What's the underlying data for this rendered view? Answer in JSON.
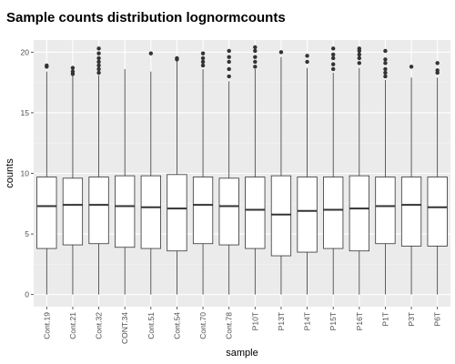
{
  "chart_data": {
    "type": "box",
    "title": "Sample counts distribution lognormcounts",
    "xlabel": "sample",
    "ylabel": "counts",
    "ylim": [
      -1,
      21
    ],
    "yticks": [
      0,
      5,
      10,
      15,
      20
    ],
    "grid": true,
    "categories": [
      "Cont.19",
      "Cont.21",
      "Cont.32",
      "CONT.34",
      "Cont.51",
      "Cont.54",
      "Cont.70",
      "Cont.78",
      "P10T",
      "P13T",
      "P14T",
      "P15T",
      "P16T",
      "P1T",
      "P3T",
      "P6T"
    ],
    "boxes": [
      {
        "min": 0,
        "q1": 3.8,
        "median": 7.3,
        "q3": 9.7,
        "max": 18.4,
        "outliers": [
          18.8,
          18.9
        ]
      },
      {
        "min": 0,
        "q1": 4.1,
        "median": 7.4,
        "q3": 9.6,
        "max": 18.1,
        "outliers": [
          18.2,
          18.4,
          18.7
        ]
      },
      {
        "min": 0,
        "q1": 4.2,
        "median": 7.4,
        "q3": 9.7,
        "max": 18.1,
        "outliers": [
          18.3,
          18.6,
          18.9,
          19.2,
          19.5,
          19.9,
          20.3
        ]
      },
      {
        "min": 0,
        "q1": 3.9,
        "median": 7.3,
        "q3": 9.8,
        "max": 18.6,
        "outliers": []
      },
      {
        "min": 0,
        "q1": 3.8,
        "median": 7.2,
        "q3": 9.8,
        "max": 18.4,
        "outliers": [
          19.9
        ]
      },
      {
        "min": 0,
        "q1": 3.6,
        "median": 7.1,
        "q3": 9.9,
        "max": 19.3,
        "outliers": [
          19.4,
          19.5
        ]
      },
      {
        "min": 0,
        "q1": 4.2,
        "median": 7.4,
        "q3": 9.7,
        "max": 18.6,
        "outliers": [
          18.9,
          19.2,
          19.5,
          19.9
        ]
      },
      {
        "min": 0,
        "q1": 4.1,
        "median": 7.3,
        "q3": 9.6,
        "max": 17.6,
        "outliers": [
          18.0,
          18.6,
          19.2,
          19.6,
          20.1
        ]
      },
      {
        "min": 0,
        "q1": 3.8,
        "median": 7.0,
        "q3": 9.7,
        "max": 18.6,
        "outliers": [
          18.8,
          19.2,
          19.6,
          20.1,
          20.4
        ]
      },
      {
        "min": 0,
        "q1": 3.2,
        "median": 6.6,
        "q3": 9.8,
        "max": 19.6,
        "outliers": [
          20.0
        ]
      },
      {
        "min": 0,
        "q1": 3.5,
        "median": 6.9,
        "q3": 9.7,
        "max": 18.7,
        "outliers": [
          19.2,
          19.7
        ]
      },
      {
        "min": 0,
        "q1": 3.8,
        "median": 7.0,
        "q3": 9.7,
        "max": 18.3,
        "outliers": [
          18.6,
          19.0,
          19.5,
          19.8,
          20.3
        ]
      },
      {
        "min": 0,
        "q1": 3.6,
        "median": 7.1,
        "q3": 9.8,
        "max": 18.7,
        "outliers": [
          19.1,
          19.5,
          19.8,
          20.1,
          20.3
        ]
      },
      {
        "min": 0,
        "q1": 4.2,
        "median": 7.3,
        "q3": 9.7,
        "max": 17.7,
        "outliers": [
          18.0,
          18.3,
          18.6,
          19.1,
          19.4,
          20.1
        ]
      },
      {
        "min": 0,
        "q1": 4.0,
        "median": 7.4,
        "q3": 9.7,
        "max": 17.9,
        "outliers": [
          18.8
        ]
      },
      {
        "min": 0,
        "q1": 4.0,
        "median": 7.2,
        "q3": 9.7,
        "max": 17.9,
        "outliers": [
          18.3,
          18.5,
          19.1
        ]
      }
    ],
    "colors": {
      "panel": "#ebebeb",
      "grid_major": "#ffffff",
      "grid_minor": "#f5f5f5",
      "box_fill": "#ffffff",
      "stroke": "#333333",
      "tick_label": "#4d4d4d"
    }
  }
}
